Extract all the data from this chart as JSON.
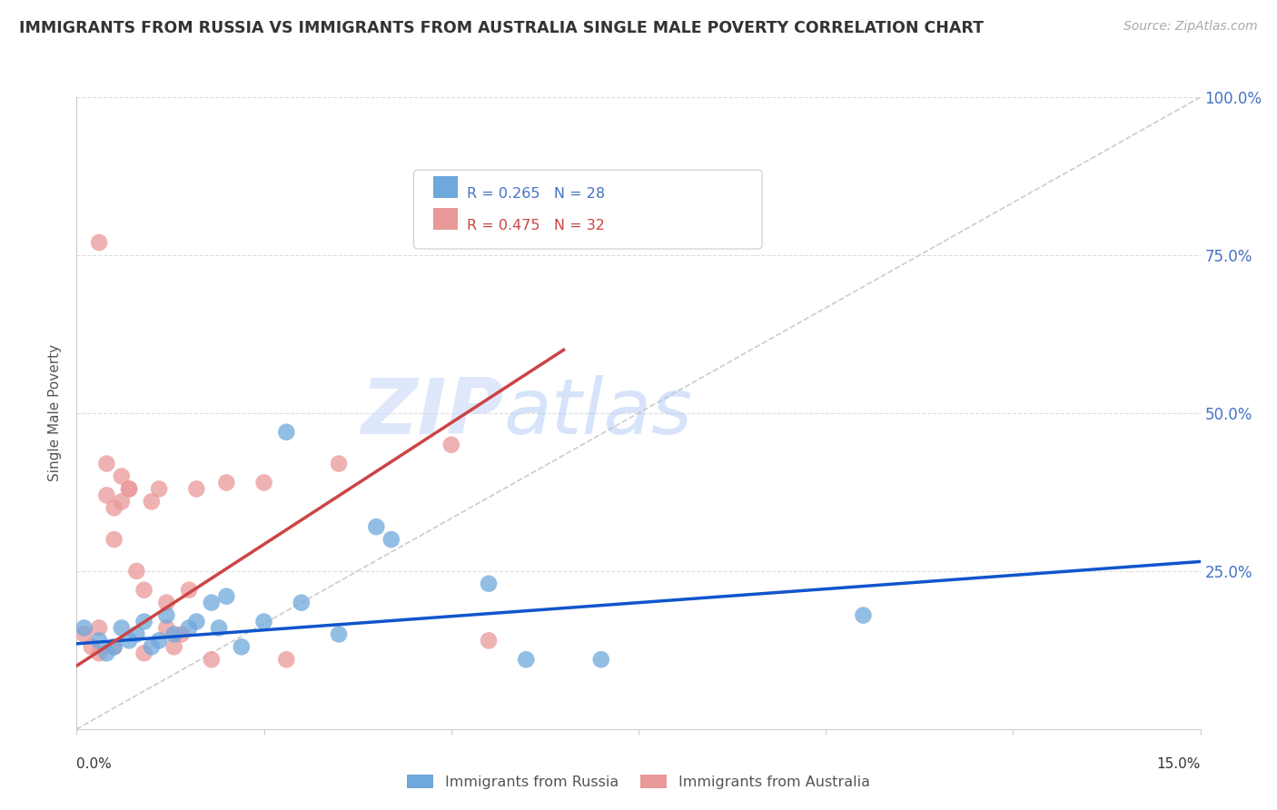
{
  "title": "IMMIGRANTS FROM RUSSIA VS IMMIGRANTS FROM AUSTRALIA SINGLE MALE POVERTY CORRELATION CHART",
  "source": "Source: ZipAtlas.com",
  "ylabel": "Single Male Poverty",
  "right_ytick_labels": [
    "100.0%",
    "75.0%",
    "50.0%",
    "25.0%"
  ],
  "right_ytick_values": [
    1.0,
    0.75,
    0.5,
    0.25
  ],
  "legend_blue_label": "Immigrants from Russia",
  "legend_pink_label": "Immigrants from Australia",
  "legend_blue_r": "R = 0.265",
  "legend_blue_n": "N = 28",
  "legend_pink_r": "R = 0.475",
  "legend_pink_n": "N = 32",
  "blue_color": "#6fa8dc",
  "pink_color": "#ea9999",
  "blue_line_color": "#1155cc",
  "pink_line_color": "#cc4444",
  "watermark_zip": "ZIP",
  "watermark_atlas": "atlas",
  "blue_dots": [
    [
      0.001,
      0.16
    ],
    [
      0.003,
      0.14
    ],
    [
      0.004,
      0.12
    ],
    [
      0.005,
      0.13
    ],
    [
      0.006,
      0.16
    ],
    [
      0.007,
      0.14
    ],
    [
      0.008,
      0.15
    ],
    [
      0.009,
      0.17
    ],
    [
      0.01,
      0.13
    ],
    [
      0.011,
      0.14
    ],
    [
      0.012,
      0.18
    ],
    [
      0.013,
      0.15
    ],
    [
      0.015,
      0.16
    ],
    [
      0.016,
      0.17
    ],
    [
      0.018,
      0.2
    ],
    [
      0.019,
      0.16
    ],
    [
      0.02,
      0.21
    ],
    [
      0.022,
      0.13
    ],
    [
      0.025,
      0.17
    ],
    [
      0.028,
      0.47
    ],
    [
      0.03,
      0.2
    ],
    [
      0.035,
      0.15
    ],
    [
      0.04,
      0.32
    ],
    [
      0.042,
      0.3
    ],
    [
      0.055,
      0.23
    ],
    [
      0.06,
      0.11
    ],
    [
      0.07,
      0.11
    ],
    [
      0.105,
      0.18
    ]
  ],
  "pink_dots": [
    [
      0.001,
      0.15
    ],
    [
      0.002,
      0.13
    ],
    [
      0.003,
      0.12
    ],
    [
      0.003,
      0.16
    ],
    [
      0.004,
      0.37
    ],
    [
      0.004,
      0.42
    ],
    [
      0.005,
      0.35
    ],
    [
      0.005,
      0.3
    ],
    [
      0.005,
      0.13
    ],
    [
      0.006,
      0.36
    ],
    [
      0.006,
      0.4
    ],
    [
      0.007,
      0.38
    ],
    [
      0.007,
      0.38
    ],
    [
      0.008,
      0.25
    ],
    [
      0.009,
      0.12
    ],
    [
      0.009,
      0.22
    ],
    [
      0.01,
      0.36
    ],
    [
      0.011,
      0.38
    ],
    [
      0.012,
      0.2
    ],
    [
      0.013,
      0.13
    ],
    [
      0.014,
      0.15
    ],
    [
      0.015,
      0.22
    ],
    [
      0.016,
      0.38
    ],
    [
      0.018,
      0.11
    ],
    [
      0.02,
      0.39
    ],
    [
      0.025,
      0.39
    ],
    [
      0.028,
      0.11
    ],
    [
      0.035,
      0.42
    ],
    [
      0.05,
      0.45
    ],
    [
      0.055,
      0.14
    ],
    [
      0.003,
      0.77
    ],
    [
      0.012,
      0.16
    ]
  ],
  "xmin": 0.0,
  "xmax": 0.15,
  "ymin": 0.0,
  "ymax": 1.0,
  "blue_line": {
    "x0": 0.0,
    "y0": 0.135,
    "x1": 0.15,
    "y1": 0.265
  },
  "pink_line": {
    "x0": 0.0,
    "y0": 0.1,
    "x1": 0.065,
    "y1": 0.6
  },
  "diag_line": {
    "x0": 0.0,
    "y0": 0.0,
    "x1": 0.15,
    "y1": 1.0
  }
}
